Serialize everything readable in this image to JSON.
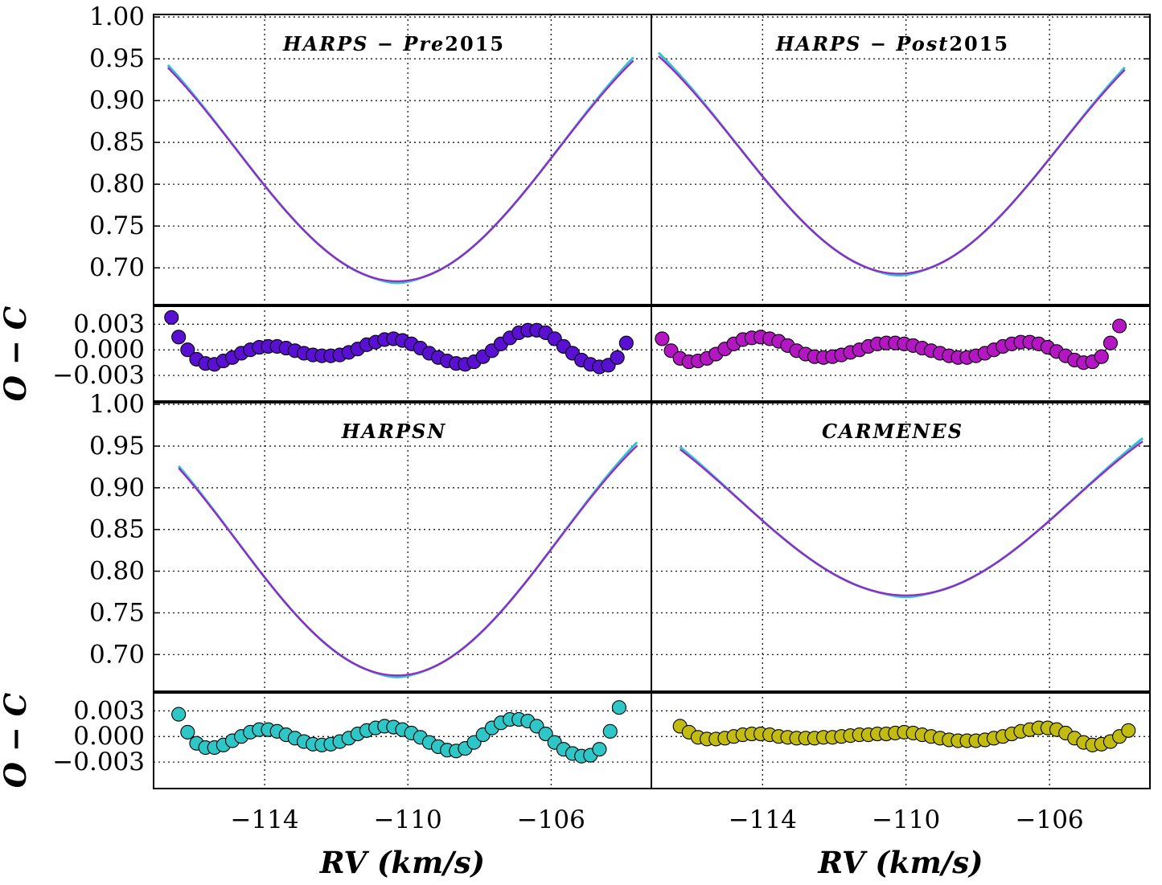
{
  "chart_data": {
    "type": "line",
    "xlabel": "RV (km/s)",
    "residual_label": "O − C",
    "x_ticks": [
      -114,
      -110,
      -106
    ],
    "x_tick_labels": [
      "−114",
      "−110",
      "−106"
    ],
    "xlim": [
      -117.1,
      -103.2
    ],
    "profile_ylim": [
      0.655,
      1.003
    ],
    "profile_ticks": [
      0.7,
      0.75,
      0.8,
      0.85,
      0.9,
      0.95,
      1.0
    ],
    "profile_tick_labels": [
      "0.70",
      "0.75",
      "0.80",
      "0.85",
      "0.90",
      "0.95",
      "1.00"
    ],
    "residual_ylim": [
      -0.0061,
      0.0052
    ],
    "residual_ticks": [
      -0.003,
      0.0,
      0.003
    ],
    "residual_tick_labels": [
      "−0.003",
      "0.000",
      "0.003"
    ],
    "model_colors": {
      "observed": "#2cc5cc",
      "model": "#a020c8"
    },
    "panels": [
      {
        "name": "HARPS − Pre2015",
        "title_main": "HARPS − Pre",
        "title_suffix": "2015",
        "x_range": [
          -116.7,
          -103.7
        ],
        "centre": -110.3,
        "depth": 0.316,
        "half_period": 9.0,
        "residual_color": "#5a10d2",
        "residual_points": [
          [
            -116.6,
            0.0038
          ],
          [
            -116.4,
            0.0015
          ],
          [
            -116.15,
            0.0
          ],
          [
            -115.9,
            -0.0011
          ],
          [
            -115.65,
            -0.0016
          ],
          [
            -115.4,
            -0.0017
          ],
          [
            -115.15,
            -0.0013
          ],
          [
            -114.9,
            -0.0009
          ],
          [
            -114.65,
            -0.0004
          ],
          [
            -114.4,
            0.0
          ],
          [
            -114.15,
            0.0003
          ],
          [
            -113.9,
            0.0004
          ],
          [
            -113.65,
            0.0004
          ],
          [
            -113.4,
            0.0002
          ],
          [
            -113.15,
            -0.0001
          ],
          [
            -112.9,
            -0.0004
          ],
          [
            -112.65,
            -0.0006
          ],
          [
            -112.4,
            -0.0007
          ],
          [
            -112.15,
            -0.0007
          ],
          [
            -111.9,
            -0.0006
          ],
          [
            -111.65,
            -0.0003
          ],
          [
            -111.4,
            0.0001
          ],
          [
            -111.15,
            0.0006
          ],
          [
            -110.9,
            0.0009
          ],
          [
            -110.65,
            0.0012
          ],
          [
            -110.4,
            0.0013
          ],
          [
            -110.15,
            0.0011
          ],
          [
            -109.9,
            0.0007
          ],
          [
            -109.65,
            0.0002
          ],
          [
            -109.4,
            -0.0004
          ],
          [
            -109.15,
            -0.0009
          ],
          [
            -108.9,
            -0.0013
          ],
          [
            -108.65,
            -0.0016
          ],
          [
            -108.4,
            -0.0017
          ],
          [
            -108.15,
            -0.0014
          ],
          [
            -107.9,
            -0.0008
          ],
          [
            -107.65,
            -0.0001
          ],
          [
            -107.4,
            0.0007
          ],
          [
            -107.15,
            0.0014
          ],
          [
            -106.9,
            0.002
          ],
          [
            -106.65,
            0.0023
          ],
          [
            -106.4,
            0.0023
          ],
          [
            -106.15,
            0.002
          ],
          [
            -105.9,
            0.0013
          ],
          [
            -105.65,
            0.0004
          ],
          [
            -105.4,
            -0.0004
          ],
          [
            -105.15,
            -0.0012
          ],
          [
            -104.9,
            -0.0017
          ],
          [
            -104.65,
            -0.002
          ],
          [
            -104.4,
            -0.0018
          ],
          [
            -104.15,
            -0.0009
          ],
          [
            -103.9,
            0.0008
          ]
        ]
      },
      {
        "name": "HARPS − Post2015",
        "title_main": "HARPS − Post",
        "title_suffix": "2015",
        "x_range": [
          -116.9,
          -103.9
        ],
        "centre": -110.2,
        "depth": 0.307,
        "half_period": 9.0,
        "residual_color": "#b416c4",
        "residual_points": [
          [
            -116.8,
            0.0013
          ],
          [
            -116.55,
            -0.0001
          ],
          [
            -116.3,
            -0.001
          ],
          [
            -116.05,
            -0.0014
          ],
          [
            -115.8,
            -0.0013
          ],
          [
            -115.55,
            -0.001
          ],
          [
            -115.3,
            -0.0005
          ],
          [
            -115.05,
            0.0001
          ],
          [
            -114.8,
            0.0007
          ],
          [
            -114.55,
            0.0012
          ],
          [
            -114.3,
            0.0014
          ],
          [
            -114.05,
            0.0015
          ],
          [
            -113.8,
            0.0013
          ],
          [
            -113.55,
            0.001
          ],
          [
            -113.3,
            0.0005
          ],
          [
            -113.05,
            -0.0001
          ],
          [
            -112.8,
            -0.0005
          ],
          [
            -112.55,
            -0.0008
          ],
          [
            -112.3,
            -0.0009
          ],
          [
            -112.05,
            -0.0008
          ],
          [
            -111.8,
            -0.0006
          ],
          [
            -111.55,
            -0.0003
          ],
          [
            -111.3,
            0.0
          ],
          [
            -111.05,
            0.0004
          ],
          [
            -110.8,
            0.0007
          ],
          [
            -110.55,
            0.0008
          ],
          [
            -110.3,
            0.0008
          ],
          [
            -110.05,
            0.0007
          ],
          [
            -109.8,
            0.0005
          ],
          [
            -109.55,
            0.0002
          ],
          [
            -109.3,
            -0.0001
          ],
          [
            -109.05,
            -0.0004
          ],
          [
            -108.8,
            -0.0007
          ],
          [
            -108.55,
            -0.0009
          ],
          [
            -108.3,
            -0.0009
          ],
          [
            -108.05,
            -0.0007
          ],
          [
            -107.8,
            -0.0004
          ],
          [
            -107.55,
            0.0
          ],
          [
            -107.3,
            0.0004
          ],
          [
            -107.05,
            0.0007
          ],
          [
            -106.8,
            0.0009
          ],
          [
            -106.55,
            0.0009
          ],
          [
            -106.3,
            0.0007
          ],
          [
            -106.05,
            0.0003
          ],
          [
            -105.8,
            -0.0002
          ],
          [
            -105.55,
            -0.0007
          ],
          [
            -105.3,
            -0.0012
          ],
          [
            -105.05,
            -0.0015
          ],
          [
            -104.8,
            -0.0014
          ],
          [
            -104.55,
            -0.0008
          ],
          [
            -104.3,
            0.0008
          ],
          [
            -104.05,
            0.0028
          ]
        ]
      },
      {
        "name": "HARPSN",
        "title_main": "HARPSN",
        "title_suffix": "",
        "x_range": [
          -116.4,
          -103.6
        ],
        "centre": -110.3,
        "depth": 0.325,
        "half_period": 9.0,
        "residual_color": "#2ec6c6",
        "residual_points": [
          [
            -116.4,
            0.0026
          ],
          [
            -116.15,
            0.0005
          ],
          [
            -115.9,
            -0.0008
          ],
          [
            -115.65,
            -0.0013
          ],
          [
            -115.4,
            -0.0013
          ],
          [
            -115.15,
            -0.001
          ],
          [
            -114.9,
            -0.0005
          ],
          [
            -114.65,
            0.0
          ],
          [
            -114.4,
            0.0005
          ],
          [
            -114.15,
            0.0008
          ],
          [
            -113.9,
            0.0008
          ],
          [
            -113.65,
            0.0006
          ],
          [
            -113.4,
            0.0002
          ],
          [
            -113.15,
            -0.0002
          ],
          [
            -112.9,
            -0.0006
          ],
          [
            -112.65,
            -0.0009
          ],
          [
            -112.4,
            -0.001
          ],
          [
            -112.15,
            -0.0009
          ],
          [
            -111.9,
            -0.0006
          ],
          [
            -111.65,
            -0.0002
          ],
          [
            -111.4,
            0.0003
          ],
          [
            -111.15,
            0.0007
          ],
          [
            -110.9,
            0.001
          ],
          [
            -110.65,
            0.0012
          ],
          [
            -110.4,
            0.0011
          ],
          [
            -110.15,
            0.0008
          ],
          [
            -109.9,
            0.0004
          ],
          [
            -109.65,
            -0.0001
          ],
          [
            -109.4,
            -0.0007
          ],
          [
            -109.15,
            -0.0012
          ],
          [
            -108.9,
            -0.0016
          ],
          [
            -108.65,
            -0.0017
          ],
          [
            -108.4,
            -0.0014
          ],
          [
            -108.15,
            -0.0007
          ],
          [
            -107.9,
            0.0002
          ],
          [
            -107.65,
            0.001
          ],
          [
            -107.4,
            0.0016
          ],
          [
            -107.15,
            0.002
          ],
          [
            -106.9,
            0.002
          ],
          [
            -106.65,
            0.0018
          ],
          [
            -106.4,
            0.0012
          ],
          [
            -106.15,
            0.0003
          ],
          [
            -105.9,
            -0.0007
          ],
          [
            -105.65,
            -0.0015
          ],
          [
            -105.4,
            -0.002
          ],
          [
            -105.15,
            -0.0023
          ],
          [
            -104.9,
            -0.0022
          ],
          [
            -104.65,
            -0.0015
          ],
          [
            -104.35,
            0.0006
          ],
          [
            -104.1,
            0.0034
          ]
        ]
      },
      {
        "name": "CARMENES",
        "title_main": "CARMENES",
        "title_suffix": "",
        "x_range": [
          -116.3,
          -103.4
        ],
        "centre": -110.0,
        "depth": 0.229,
        "half_period": 9.3,
        "residual_color": "#c2bb12",
        "residual_points": [
          [
            -116.3,
            0.0012
          ],
          [
            -116.05,
            0.0005
          ],
          [
            -115.8,
            -0.0001
          ],
          [
            -115.55,
            -0.0003
          ],
          [
            -115.3,
            -0.0003
          ],
          [
            -115.05,
            -0.0002
          ],
          [
            -114.8,
            0.0
          ],
          [
            -114.55,
            0.0002
          ],
          [
            -114.3,
            0.0003
          ],
          [
            -114.05,
            0.0003
          ],
          [
            -113.8,
            0.0002
          ],
          [
            -113.55,
            0.0
          ],
          [
            -113.3,
            -0.0001
          ],
          [
            -113.05,
            -0.0002
          ],
          [
            -112.8,
            -0.0002
          ],
          [
            -112.55,
            -0.0002
          ],
          [
            -112.3,
            -0.0001
          ],
          [
            -112.05,
            -0.0001
          ],
          [
            -111.8,
            0.0
          ],
          [
            -111.55,
            0.0001
          ],
          [
            -111.3,
            0.0002
          ],
          [
            -111.05,
            0.0002
          ],
          [
            -110.8,
            0.0003
          ],
          [
            -110.55,
            0.0003
          ],
          [
            -110.3,
            0.0004
          ],
          [
            -110.05,
            0.0005
          ],
          [
            -109.8,
            0.0004
          ],
          [
            -109.55,
            0.0002
          ],
          [
            -109.3,
            0.0
          ],
          [
            -109.05,
            -0.0002
          ],
          [
            -108.8,
            -0.0004
          ],
          [
            -108.55,
            -0.0005
          ],
          [
            -108.3,
            -0.0005
          ],
          [
            -108.05,
            -0.0005
          ],
          [
            -107.8,
            -0.0004
          ],
          [
            -107.55,
            -0.0002
          ],
          [
            -107.3,
            0.0
          ],
          [
            -107.05,
            0.0003
          ],
          [
            -106.8,
            0.0006
          ],
          [
            -106.55,
            0.0008
          ],
          [
            -106.3,
            0.001
          ],
          [
            -106.05,
            0.001
          ],
          [
            -105.8,
            0.0008
          ],
          [
            -105.55,
            0.0004
          ],
          [
            -105.3,
            -0.0002
          ],
          [
            -105.05,
            -0.0007
          ],
          [
            -104.8,
            -0.001
          ],
          [
            -104.55,
            -0.0009
          ],
          [
            -104.3,
            -0.0006
          ],
          [
            -104.05,
            0.0
          ],
          [
            -103.8,
            0.0007
          ]
        ]
      }
    ]
  }
}
